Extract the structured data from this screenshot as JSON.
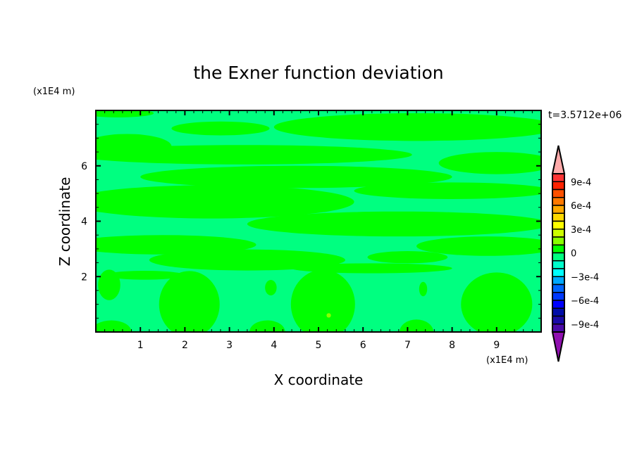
{
  "chart_data": {
    "type": "heatmap",
    "subtype": "filled-contour",
    "title": "the Exner function deviation",
    "xlabel": "X coordinate",
    "ylabel": "Z coordinate",
    "x_unit_label": "(x1E4 m)",
    "y_unit_label": "(x1E4 m)",
    "time_label": "t=3.5712e+06",
    "xlim": [
      0,
      10
    ],
    "ylim": [
      0,
      8
    ],
    "x_ticks": [
      1,
      2,
      3,
      4,
      5,
      6,
      7,
      8,
      9
    ],
    "y_ticks": [
      2,
      4,
      6
    ],
    "x_tick_labels": [
      "1",
      "2",
      "3",
      "4",
      "5",
      "6",
      "7",
      "8",
      "9"
    ],
    "y_tick_labels": [
      "2",
      "4",
      "6"
    ],
    "colorbar": {
      "levels": [
        0.001,
        0.0009,
        0.0008,
        0.0007,
        0.0006,
        0.0005,
        0.0004,
        0.0003,
        0.0002,
        0.0001,
        0,
        -0.0001,
        -0.0002,
        -0.0003,
        -0.0004,
        -0.0005,
        -0.0006,
        -0.0007,
        -0.0008,
        -0.0009,
        -0.001
      ],
      "colors": [
        "#ff3333",
        "#ff2200",
        "#ff5000",
        "#ff7800",
        "#ffa800",
        "#ffd800",
        "#ffff00",
        "#ccff00",
        "#88ff00",
        "#00ff00",
        "#00ff80",
        "#00ffcc",
        "#00ffff",
        "#00a8ff",
        "#0064ff",
        "#0038ff",
        "#0000ff",
        "#000ca8",
        "#1a0aa8",
        "#4a0aa8"
      ],
      "over_color": "#ffaaaa",
      "under_color": "#9010b0",
      "tick_labels": [
        {
          "value": 0.0009,
          "label": "9e-4"
        },
        {
          "value": 0.0006,
          "label": "6e-4"
        },
        {
          "value": 0.0003,
          "label": "3e-4"
        },
        {
          "value": 0,
          "label": "0"
        },
        {
          "value": -0.0003,
          "label": "−3e-4"
        },
        {
          "value": -0.0006,
          "label": "−6e-4"
        },
        {
          "value": -0.0009,
          "label": "−9e-4"
        }
      ]
    },
    "background_level": -5e-05,
    "regions": [
      {
        "x": 0.5,
        "z": 7.9,
        "rx": 0.8,
        "rz": 0.15,
        "value": 5e-05
      },
      {
        "x": 7.2,
        "z": 7.4,
        "rx": 3.2,
        "rz": 0.5,
        "value": 5e-05
      },
      {
        "x": 2.8,
        "z": 7.35,
        "rx": 1.1,
        "rz": 0.25,
        "value": 5e-05
      },
      {
        "x": 0.7,
        "z": 6.7,
        "rx": 1.0,
        "rz": 0.45,
        "value": 5e-05
      },
      {
        "x": 3.3,
        "z": 6.4,
        "rx": 3.8,
        "rz": 0.35,
        "value": 5e-05
      },
      {
        "x": 9.0,
        "z": 6.1,
        "rx": 1.3,
        "rz": 0.4,
        "value": 5e-05
      },
      {
        "x": 4.5,
        "z": 5.6,
        "rx": 3.5,
        "rz": 0.4,
        "value": 5e-05
      },
      {
        "x": 2.6,
        "z": 4.7,
        "rx": 3.2,
        "rz": 0.6,
        "value": 5e-05
      },
      {
        "x": 8.0,
        "z": 5.1,
        "rx": 2.2,
        "rz": 0.3,
        "value": 5e-05
      },
      {
        "x": 6.8,
        "z": 3.9,
        "rx": 3.4,
        "rz": 0.45,
        "value": 5e-05
      },
      {
        "x": 1.5,
        "z": 3.15,
        "rx": 2.1,
        "rz": 0.35,
        "value": 5e-05
      },
      {
        "x": 8.8,
        "z": 3.1,
        "rx": 1.6,
        "rz": 0.35,
        "value": 5e-05
      },
      {
        "x": 3.4,
        "z": 2.6,
        "rx": 2.2,
        "rz": 0.38,
        "value": 5e-05
      },
      {
        "x": 7.0,
        "z": 2.7,
        "rx": 0.9,
        "rz": 0.22,
        "value": 5e-05
      },
      {
        "x": 6.2,
        "z": 2.3,
        "rx": 1.8,
        "rz": 0.18,
        "value": 5e-05
      },
      {
        "x": 1.1,
        "z": 2.05,
        "rx": 0.9,
        "rz": 0.16,
        "value": 5e-05
      },
      {
        "x": 0.3,
        "z": 1.7,
        "rx": 0.25,
        "rz": 0.55,
        "value": 5e-05
      },
      {
        "x": 2.1,
        "z": 1.0,
        "rx": 0.68,
        "rz": 1.2,
        "value": 5e-05
      },
      {
        "x": 3.93,
        "z": 1.6,
        "rx": 0.13,
        "rz": 0.28,
        "value": 5e-05
      },
      {
        "x": 5.1,
        "z": 1.0,
        "rx": 0.72,
        "rz": 1.25,
        "value": 5e-05
      },
      {
        "x": 7.35,
        "z": 1.55,
        "rx": 0.09,
        "rz": 0.26,
        "value": 5e-05
      },
      {
        "x": 9.0,
        "z": 1.0,
        "rx": 0.8,
        "rz": 1.15,
        "value": 5e-05
      },
      {
        "x": 0.35,
        "z": 0.0,
        "rx": 0.45,
        "rz": 0.42,
        "value": 5e-05
      },
      {
        "x": 3.85,
        "z": 0.0,
        "rx": 0.4,
        "rz": 0.42,
        "value": 5e-05
      },
      {
        "x": 7.2,
        "z": 0.0,
        "rx": 0.38,
        "rz": 0.45,
        "value": 5e-05
      },
      {
        "x": 5.23,
        "z": 0.6,
        "rx": 0.05,
        "rz": 0.08,
        "value": 0.00015
      }
    ]
  }
}
